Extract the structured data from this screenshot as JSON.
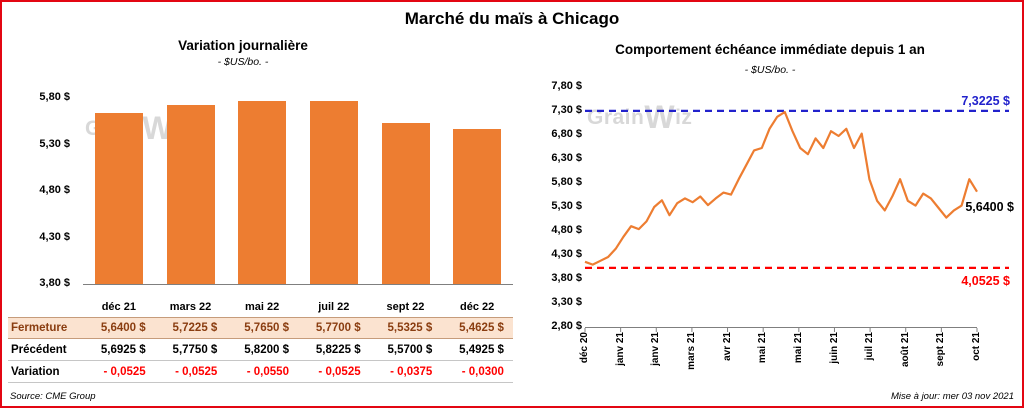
{
  "header": {
    "title": "Marché du maïs à Chicago"
  },
  "footer": {
    "source": "Source: CME Group",
    "updated": "Mise à jour: mer 03 nov 2021"
  },
  "watermark": {
    "part1": "Grain",
    "part2": "W",
    "part3": "iz"
  },
  "colors": {
    "frame_border": "#E30613",
    "accent_orange": "#ED7D31",
    "high_blue": "#2222CC",
    "low_red": "#FF0000",
    "negative_red": "#FF0000",
    "highlight_bg": "#FBE3D0",
    "highlight_text": "#8A3D10"
  },
  "chart_data": [
    {
      "type": "bar",
      "title": "Variation journalière",
      "subtitle": "- $US/bo. -",
      "categories": [
        "déc 21",
        "mars 22",
        "mai 22",
        "juil 22",
        "sept 22",
        "déc 22"
      ],
      "values": [
        5.64,
        5.7225,
        5.765,
        5.77,
        5.5325,
        5.4625
      ],
      "ylim": [
        3.8,
        5.8
      ],
      "ytick_labels": [
        "5,80 $",
        "5,30 $",
        "4,80 $",
        "4,30 $",
        "3,80 $"
      ],
      "bar_color": "#ED7D31",
      "grid": "off",
      "legend": "none",
      "table_rows": [
        {
          "label": "Fermeture",
          "style": "close",
          "values": [
            "5,6400 $",
            "5,7225 $",
            "5,7650 $",
            "5,7700 $",
            "5,5325 $",
            "5,4625 $"
          ]
        },
        {
          "label": "Précédent",
          "style": "previous",
          "values": [
            "5,6925 $",
            "5,7750 $",
            "5,8200 $",
            "5,8225 $",
            "5,5700 $",
            "5,4925 $"
          ]
        },
        {
          "label": "Variation",
          "style": "variation",
          "values": [
            "- 0,0525",
            "- 0,0525",
            "- 0,0550",
            "- 0,0525",
            "- 0,0375",
            "- 0,0300"
          ]
        }
      ]
    },
    {
      "type": "line",
      "title": "Comportement échéance immédiate depuis 1 an",
      "subtitle": "- $US/bo. -",
      "ylim": [
        2.8,
        7.8
      ],
      "ytick_labels": [
        "7,80 $",
        "7,30 $",
        "6,80 $",
        "6,30 $",
        "5,80 $",
        "5,30 $",
        "4,80 $",
        "4,30 $",
        "3,80 $",
        "3,30 $",
        "2,80 $"
      ],
      "x_tick_labels": [
        "déc 20",
        "janv 21",
        "janv 21",
        "mars 21",
        "avr 21",
        "mai 21",
        "mai 21",
        "juin 21",
        "juil 21",
        "août 21",
        "sept 21",
        "oct 21"
      ],
      "line_color": "#ED7D31",
      "grid": "off",
      "high_line": {
        "value": 7.3225,
        "label": "7,3225 $",
        "color": "#2222CC"
      },
      "low_line": {
        "value": 4.0525,
        "label": "4,0525 $",
        "color": "#FF0000"
      },
      "last_point": {
        "value": 5.64,
        "label": "5,6400 $"
      },
      "values": [
        4.18,
        4.12,
        4.2,
        4.28,
        4.45,
        4.7,
        4.92,
        4.86,
        5.02,
        5.32,
        5.46,
        5.15,
        5.4,
        5.5,
        5.42,
        5.54,
        5.36,
        5.5,
        5.62,
        5.58,
        5.9,
        6.2,
        6.5,
        6.55,
        6.95,
        7.2,
        7.3,
        6.9,
        6.55,
        6.42,
        6.75,
        6.55,
        6.9,
        6.8,
        6.95,
        6.55,
        6.85,
        5.9,
        5.45,
        5.25,
        5.55,
        5.9,
        5.45,
        5.35,
        5.6,
        5.5,
        5.3,
        5.1,
        5.25,
        5.35,
        5.9,
        5.64
      ]
    }
  ]
}
